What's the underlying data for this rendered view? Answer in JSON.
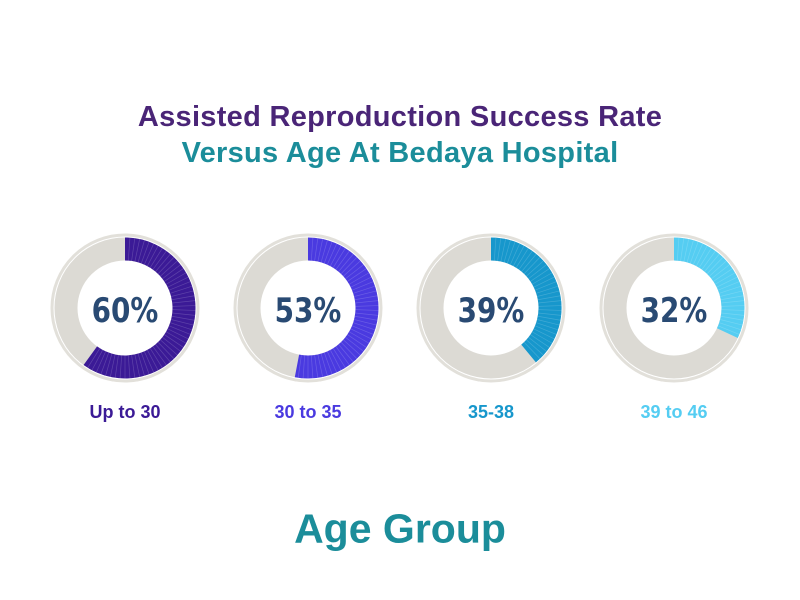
{
  "title_line1": "Assisted Reproduction Success Rate",
  "title_line2": "Versus Age At Bedaya Hospital",
  "colors": {
    "title_line1": "#4a2577",
    "title_line2": "#1b8d9a",
    "xlabel": "#1b8d9a",
    "ring_bg": "#dcdad4",
    "ring_outline": "#e2e0da",
    "percent_text": "#294a73",
    "series": [
      "#3b1a96",
      "#4a3ae0",
      "#1797cc",
      "#55cdf2"
    ]
  },
  "chart_data": {
    "type": "pie",
    "title": "Assisted Reproduction Success Rate Versus Age At Bedaya Hospital",
    "xlabel": "Age Group",
    "categories": [
      "Up to 30",
      "30 to 35",
      "35-38",
      "39 to 46"
    ],
    "values": [
      60,
      53,
      39,
      32
    ],
    "value_labels": [
      "60%",
      "53%",
      "39%",
      "32%"
    ],
    "unit": "%",
    "grid": false,
    "legend": "none"
  }
}
